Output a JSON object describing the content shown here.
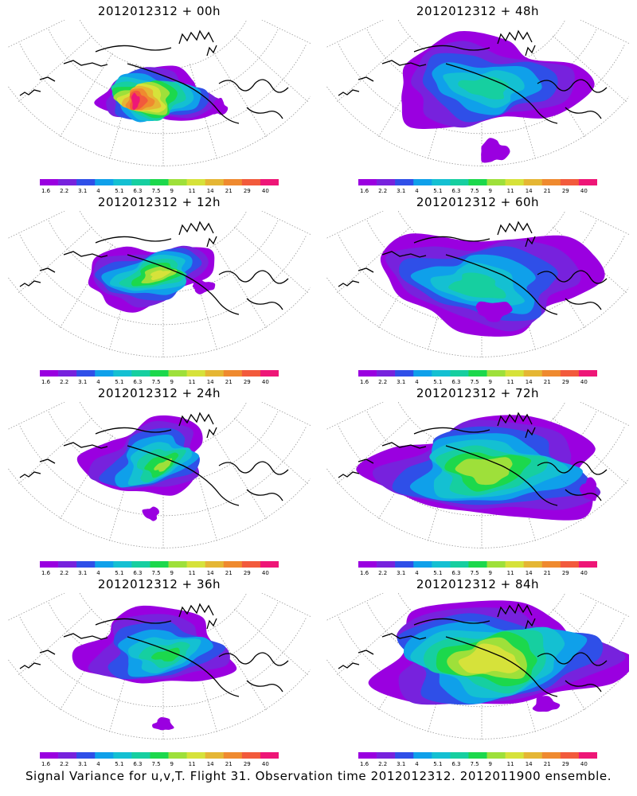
{
  "footer_caption": "Signal Variance for u,v,T. Flight 31. Observation time 2012012312. 2012011900 ensemble.",
  "palette": [
    "#9a00e0",
    "#7722dd",
    "#2f4fe8",
    "#0fa0ea",
    "#14c0d2",
    "#16cfa0",
    "#1cd84c",
    "#9ee03a",
    "#d6e23a",
    "#e5b634",
    "#ef8a2f",
    "#f25a3c",
    "#ee1677"
  ],
  "colorbar_labels": [
    "1.6",
    "2.2",
    "3.1",
    "4",
    "5.1",
    "6.3",
    "7.5",
    "9",
    "11",
    "14",
    "21",
    "29",
    "40"
  ],
  "chart_data": [
    {
      "type": "heatmap",
      "title": "2012012312 + 00h",
      "forecast_hour": 0,
      "levels": [
        "1.6",
        "2.2",
        "3.1",
        "4",
        "5.1",
        "6.3",
        "7.5",
        "9",
        "11",
        "14",
        "21",
        "29",
        "40"
      ],
      "peak_class": "40"
    },
    {
      "type": "heatmap",
      "title": "2012012312 + 48h",
      "forecast_hour": 48,
      "levels": [
        "1.6",
        "2.2",
        "3.1",
        "4",
        "5.1",
        "6.3",
        "7.5",
        "9",
        "11",
        "14",
        "21",
        "29",
        "40"
      ],
      "peak_class": "6.3"
    },
    {
      "type": "heatmap",
      "title": "2012012312 + 12h",
      "forecast_hour": 12,
      "levels": [
        "1.6",
        "2.2",
        "3.1",
        "4",
        "5.1",
        "6.3",
        "7.5",
        "9",
        "11",
        "14",
        "21",
        "29",
        "40"
      ],
      "peak_class": "11"
    },
    {
      "type": "heatmap",
      "title": "2012012312 + 60h",
      "forecast_hour": 60,
      "levels": [
        "1.6",
        "2.2",
        "3.1",
        "4",
        "5.1",
        "6.3",
        "7.5",
        "9",
        "11",
        "14",
        "21",
        "29",
        "40"
      ],
      "peak_class": "6.3"
    },
    {
      "type": "heatmap",
      "title": "2012012312 + 24h",
      "forecast_hour": 24,
      "levels": [
        "1.6",
        "2.2",
        "3.1",
        "4",
        "5.1",
        "6.3",
        "7.5",
        "9",
        "11",
        "14",
        "21",
        "29",
        "40"
      ],
      "peak_class": "9"
    },
    {
      "type": "heatmap",
      "title": "2012012312 + 72h",
      "forecast_hour": 72,
      "levels": [
        "1.6",
        "2.2",
        "3.1",
        "4",
        "5.1",
        "6.3",
        "7.5",
        "9",
        "11",
        "14",
        "21",
        "29",
        "40"
      ],
      "peak_class": "9"
    },
    {
      "type": "heatmap",
      "title": "2012012312 + 36h",
      "forecast_hour": 36,
      "levels": [
        "1.6",
        "2.2",
        "3.1",
        "4",
        "5.1",
        "6.3",
        "7.5",
        "9",
        "11",
        "14",
        "21",
        "29",
        "40"
      ],
      "peak_class": "7.5"
    },
    {
      "type": "heatmap",
      "title": "2012012312 + 84h",
      "forecast_hour": 84,
      "levels": [
        "1.6",
        "2.2",
        "3.1",
        "4",
        "5.1",
        "6.3",
        "7.5",
        "9",
        "11",
        "14",
        "21",
        "29",
        "40"
      ],
      "peak_class": "11"
    }
  ]
}
